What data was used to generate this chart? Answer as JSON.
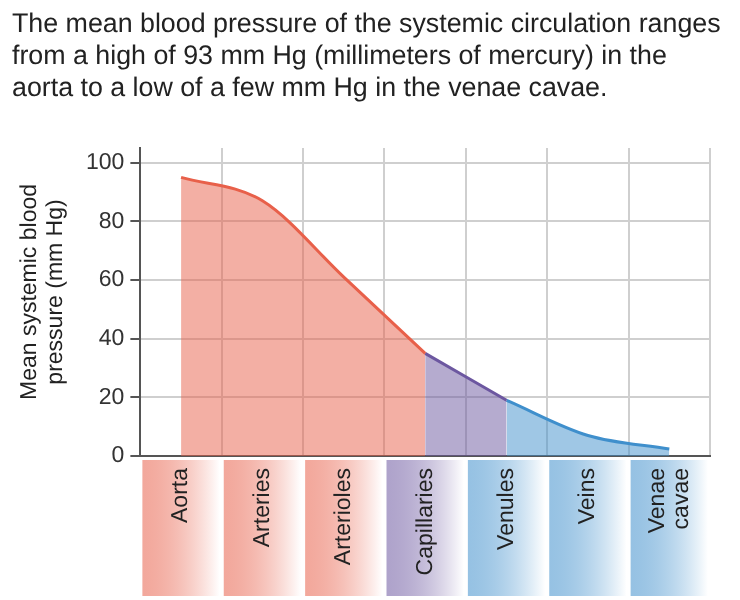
{
  "chart_data": {
    "type": "area",
    "title": "The mean blood pressure of the systemic circulation ranges from a high of 93 mm Hg (millimeters of mercury) in the aorta to a low of a few mm Hg in the venae cavae.",
    "ylabel": "Mean systemic blood pressure (mm Hg)",
    "categories": [
      "Aorta",
      "Arteries",
      "Arterioles",
      "Capillaries",
      "Venules",
      "Veins",
      "Venae cavae"
    ],
    "ylim": [
      0,
      105
    ],
    "yticks": [
      0,
      20,
      40,
      60,
      80,
      100
    ],
    "grid": true,
    "series": [
      {
        "color": "#e8604a",
        "values": [
          95,
          87,
          61,
          35,
          null,
          null,
          null
        ]
      },
      {
        "color": "#6c57a0",
        "values": [
          null,
          null,
          null,
          35,
          19,
          null,
          null
        ]
      },
      {
        "color": "#3f8fcc",
        "values": [
          null,
          null,
          null,
          null,
          19,
          7,
          2.4
        ]
      }
    ]
  }
}
